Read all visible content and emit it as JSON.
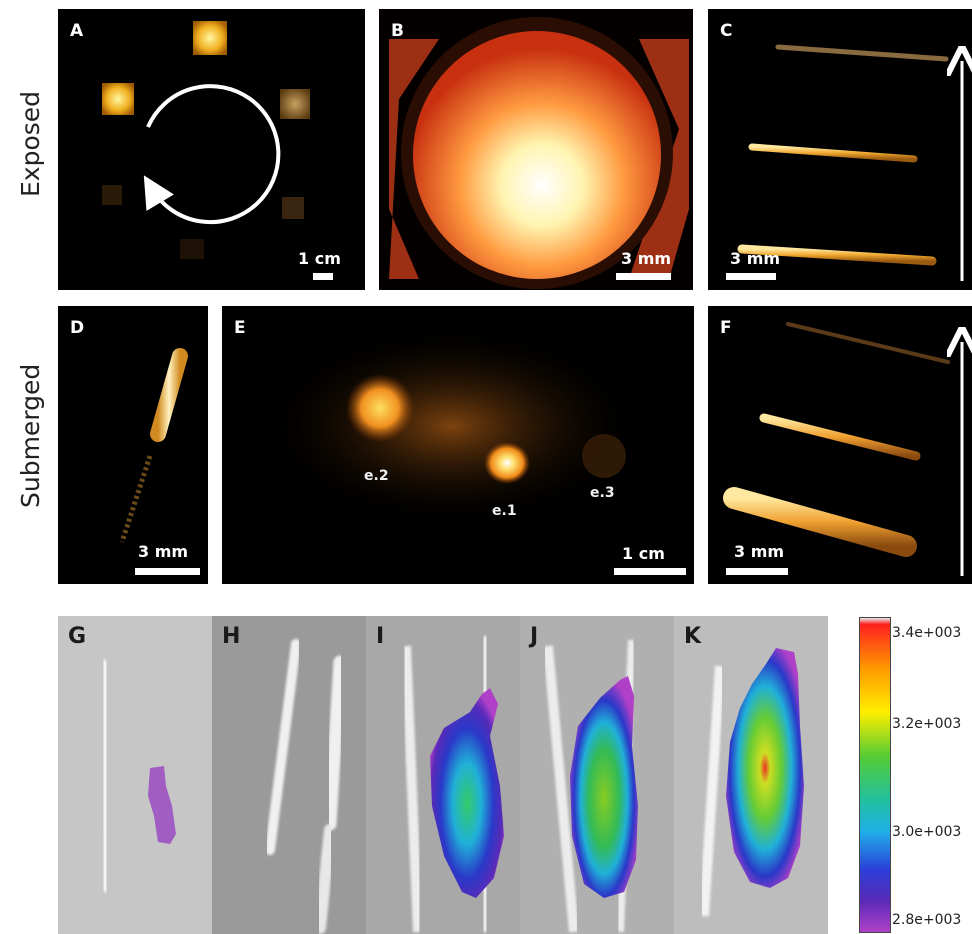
{
  "row_labels": {
    "top": "Exposed",
    "middle": "Submerged"
  },
  "panels": {
    "A": {
      "label": "A",
      "scale": "1 cm"
    },
    "B": {
      "label": "B",
      "scale": "3 mm"
    },
    "C": {
      "label": "C",
      "scale": "3 mm"
    },
    "D": {
      "label": "D",
      "scale": "3 mm"
    },
    "E": {
      "label": "E",
      "scale": "1 cm",
      "spots": {
        "e1": "e.1",
        "e2": "e.2",
        "e3": "e.3"
      }
    },
    "F": {
      "label": "F",
      "scale": "3 mm"
    },
    "G": {
      "label": "G"
    },
    "H": {
      "label": "H"
    },
    "I": {
      "label": "I"
    },
    "J": {
      "label": "J"
    },
    "K": {
      "label": "K"
    }
  },
  "colorbar": {
    "ticks": [
      "3.4e+003",
      "3.2e+003",
      "3.0e+003",
      "2.8e+003"
    ],
    "colors": [
      "#ff1a1a",
      "#ffd000",
      "#33cc33",
      "#1fb5e8",
      "#2a2ad0",
      "#b040c8"
    ]
  }
}
